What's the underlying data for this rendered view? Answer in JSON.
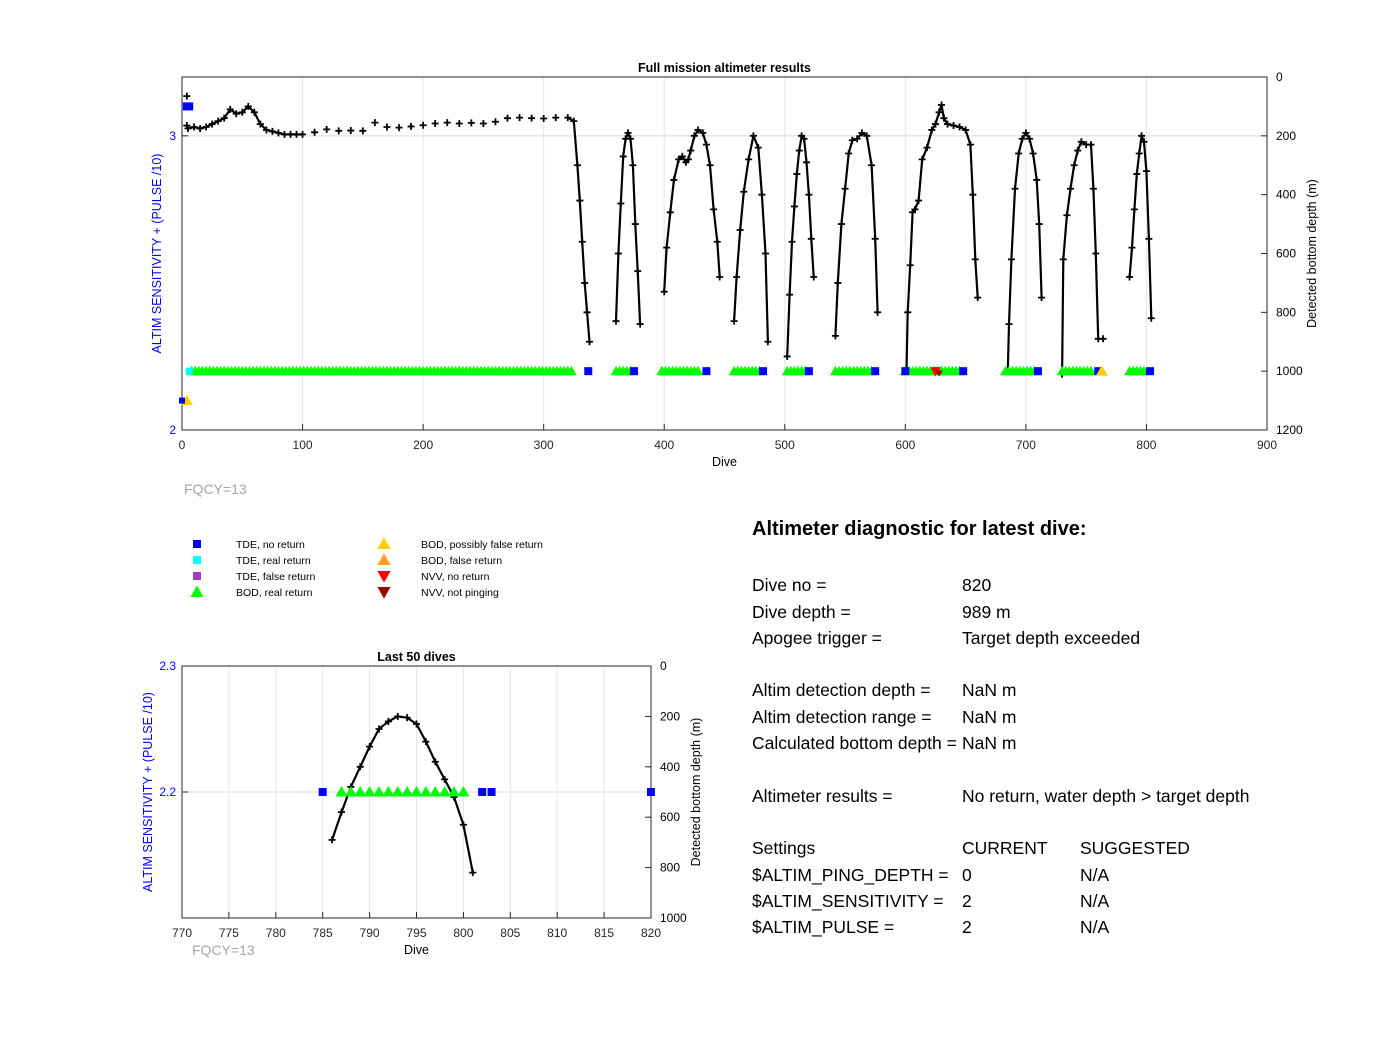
{
  "main_chart": {
    "title": "Full mission altimeter results",
    "xlabel": "Dive",
    "ylabel_left": "ALTIM SENSITIVITY + (PULSE /10)",
    "ylabel_right": "Detected bottom depth (m)",
    "xticks": [
      "0",
      "100",
      "200",
      "300",
      "400",
      "500",
      "600",
      "700",
      "800",
      "900"
    ],
    "yticks_left": [
      "2",
      "3"
    ],
    "yticks_right": [
      "0",
      "200",
      "400",
      "600",
      "800",
      "1000",
      "1200"
    ],
    "note": "FQCY=13"
  },
  "small_chart": {
    "title": "Last 50 dives",
    "xlabel": "Dive",
    "ylabel_left": "ALTIM SENSITIVITY + (PULSE /10)",
    "ylabel_right": "Detected bottom depth (m)",
    "xticks": [
      "770",
      "775",
      "780",
      "785",
      "790",
      "795",
      "800",
      "805",
      "810",
      "815",
      "820"
    ],
    "yticks_left": [
      "2.2",
      "2.3"
    ],
    "yticks_right": [
      "0",
      "200",
      "400",
      "600",
      "800",
      "1000"
    ],
    "note": "FQCY=13"
  },
  "legend": [
    {
      "label": "TDE, no return",
      "marker": "square",
      "color": "#0000ff"
    },
    {
      "label": "TDE, real return",
      "marker": "square",
      "color": "#00ffff"
    },
    {
      "label": "TDE, false return",
      "marker": "square",
      "color": "#a040c0"
    },
    {
      "label": "BOD, real return",
      "marker": "triangle-up",
      "color": "#00ff00"
    },
    {
      "label": "BOD, possibly false return",
      "marker": "triangle-up",
      "color": "#ffd000"
    },
    {
      "label": "BOD, false return",
      "marker": "triangle-up",
      "color": "#ffa020"
    },
    {
      "label": "NVV, no return",
      "marker": "triangle-down",
      "color": "#ff0000"
    },
    {
      "label": "NVV, not pinging",
      "marker": "triangle-down",
      "color": "#a00000"
    }
  ],
  "diagnostic": {
    "title": "Altimeter diagnostic for latest dive:",
    "dive_no_label": "Dive no =",
    "dive_no": "820",
    "dive_depth_label": "Dive depth =",
    "dive_depth": "989 m",
    "apogee_label": "Apogee trigger =",
    "apogee": "Target depth exceeded",
    "det_depth_label": "Altim detection depth =",
    "det_depth": "NaN m",
    "det_range_label": "Altim detection range =",
    "det_range": "NaN m",
    "bottom_label": "Calculated bottom depth =",
    "bottom": "NaN m",
    "results_label": "Altimeter results =",
    "results": "No return, water depth > target depth",
    "settings_label": "Settings",
    "current_label": "CURRENT",
    "suggested_label": "SUGGESTED",
    "ping_depth_label": "$ALTIM_PING_DEPTH =",
    "ping_depth_current": "0",
    "ping_depth_suggested": "N/A",
    "sensitivity_label": "$ALTIM_SENSITIVITY =",
    "sensitivity_current": "2",
    "sensitivity_suggested": "N/A",
    "pulse_label": "$ALTIM_PULSE =",
    "pulse_current": "2",
    "pulse_suggested": "N/A"
  },
  "chart_data": [
    {
      "type": "scatter",
      "title": "Full mission altimeter results",
      "xlabel": "Dive",
      "ylabel": "ALTIM SENSITIVITY + (PULSE /10)",
      "ylabel_right": "Detected bottom depth (m)",
      "xlim": [
        0,
        900
      ],
      "ylim": [
        2,
        3.2
      ],
      "ylim_right": [
        1200,
        0
      ],
      "grid": true,
      "depth_series": [
        [
          4,
          165
        ],
        [
          5,
          175
        ],
        [
          10,
          170
        ],
        [
          15,
          175
        ],
        [
          20,
          170
        ],
        [
          25,
          160
        ],
        [
          30,
          150
        ],
        [
          35,
          140
        ],
        [
          40,
          110
        ],
        [
          45,
          125
        ],
        [
          50,
          120
        ],
        [
          55,
          100
        ],
        [
          60,
          120
        ],
        [
          65,
          160
        ],
        [
          70,
          180
        ],
        [
          75,
          185
        ],
        [
          80,
          190
        ],
        [
          85,
          195
        ],
        [
          90,
          195
        ],
        [
          95,
          195
        ],
        [
          100,
          195
        ],
        [
          110,
          188
        ],
        [
          120,
          178
        ],
        [
          130,
          183
        ],
        [
          140,
          182
        ],
        [
          150,
          183
        ],
        [
          160,
          155
        ],
        [
          170,
          170
        ],
        [
          180,
          172
        ],
        [
          190,
          168
        ],
        [
          200,
          164
        ],
        [
          210,
          158
        ],
        [
          220,
          155
        ],
        [
          230,
          158
        ],
        [
          240,
          156
        ],
        [
          250,
          158
        ],
        [
          260,
          152
        ],
        [
          270,
          140
        ],
        [
          280,
          138
        ],
        [
          290,
          140
        ],
        [
          300,
          141
        ],
        [
          310,
          138
        ],
        [
          320,
          138
        ],
        [
          325,
          150
        ],
        [
          328,
          300
        ],
        [
          330,
          420
        ],
        [
          332,
          560
        ],
        [
          334,
          700
        ],
        [
          336,
          800
        ],
        [
          338,
          900
        ],
        [
          360,
          830
        ],
        [
          362,
          600
        ],
        [
          364,
          430
        ],
        [
          366,
          270
        ],
        [
          368,
          210
        ],
        [
          370,
          190
        ],
        [
          372,
          210
        ],
        [
          374,
          300
        ],
        [
          376,
          500
        ],
        [
          378,
          660
        ],
        [
          380,
          840
        ],
        [
          400,
          730
        ],
        [
          402,
          580
        ],
        [
          405,
          460
        ],
        [
          408,
          350
        ],
        [
          412,
          280
        ],
        [
          415,
          270
        ],
        [
          418,
          290
        ],
        [
          420,
          280
        ],
        [
          422,
          250
        ],
        [
          425,
          200
        ],
        [
          428,
          180
        ],
        [
          432,
          190
        ],
        [
          435,
          230
        ],
        [
          438,
          300
        ],
        [
          441,
          450
        ],
        [
          444,
          560
        ],
        [
          446,
          680
        ],
        [
          458,
          830
        ],
        [
          460,
          680
        ],
        [
          463,
          520
        ],
        [
          466,
          390
        ],
        [
          470,
          280
        ],
        [
          474,
          200
        ],
        [
          478,
          240
        ],
        [
          481,
          400
        ],
        [
          484,
          600
        ],
        [
          486,
          900
        ],
        [
          502,
          950
        ],
        [
          504,
          740
        ],
        [
          506,
          560
        ],
        [
          508,
          440
        ],
        [
          510,
          330
        ],
        [
          512,
          250
        ],
        [
          514,
          200
        ],
        [
          516,
          210
        ],
        [
          518,
          290
        ],
        [
          520,
          400
        ],
        [
          522,
          550
        ],
        [
          524,
          680
        ],
        [
          542,
          880
        ],
        [
          544,
          700
        ],
        [
          547,
          500
        ],
        [
          550,
          380
        ],
        [
          553,
          260
        ],
        [
          556,
          215
        ],
        [
          560,
          210
        ],
        [
          564,
          190
        ],
        [
          568,
          200
        ],
        [
          572,
          300
        ],
        [
          575,
          550
        ],
        [
          577,
          800
        ],
        [
          601,
          1000
        ],
        [
          602,
          800
        ],
        [
          604,
          640
        ],
        [
          606,
          460
        ],
        [
          608,
          450
        ],
        [
          611,
          420
        ],
        [
          614,
          280
        ],
        [
          618,
          240
        ],
        [
          622,
          180
        ],
        [
          625,
          160
        ],
        [
          628,
          120
        ],
        [
          630,
          95
        ],
        [
          632,
          140
        ],
        [
          635,
          160
        ],
        [
          640,
          165
        ],
        [
          645,
          170
        ],
        [
          650,
          180
        ],
        [
          654,
          230
        ],
        [
          656,
          400
        ],
        [
          658,
          620
        ],
        [
          660,
          750
        ],
        [
          685,
          1000
        ],
        [
          686,
          840
        ],
        [
          688,
          620
        ],
        [
          691,
          380
        ],
        [
          694,
          260
        ],
        [
          697,
          210
        ],
        [
          700,
          190
        ],
        [
          703,
          210
        ],
        [
          706,
          260
        ],
        [
          709,
          350
        ],
        [
          711,
          500
        ],
        [
          713,
          750
        ],
        [
          730,
          1010
        ],
        [
          731,
          620
        ],
        [
          734,
          470
        ],
        [
          737,
          380
        ],
        [
          740,
          300
        ],
        [
          743,
          250
        ],
        [
          746,
          220
        ],
        [
          750,
          230
        ],
        [
          754,
          230
        ],
        [
          756,
          380
        ],
        [
          758,
          600
        ],
        [
          760,
          890
        ],
        [
          786,
          680
        ],
        [
          788,
          580
        ],
        [
          790,
          450
        ],
        [
          792,
          330
        ],
        [
          794,
          260
        ],
        [
          796,
          200
        ],
        [
          798,
          220
        ],
        [
          800,
          320
        ],
        [
          802,
          550
        ],
        [
          804,
          820
        ]
      ],
      "bod_real_return_segments": [
        [
          8,
          325
        ],
        [
          360,
          372
        ],
        [
          398,
          430
        ],
        [
          458,
          480
        ],
        [
          502,
          518
        ],
        [
          542,
          572
        ],
        [
          600,
          645
        ],
        [
          683,
          708
        ],
        [
          730,
          755
        ],
        [
          786,
          800
        ]
      ],
      "tde_no_return": [
        [
          4,
          3.1
        ],
        [
          337,
          2.2
        ],
        [
          375,
          2.2
        ],
        [
          435,
          2.2
        ],
        [
          482,
          2.2
        ],
        [
          520,
          2.2
        ],
        [
          575,
          2.2
        ],
        [
          648,
          2.2
        ],
        [
          710,
          2.2
        ],
        [
          760,
          2.2
        ],
        [
          803,
          2.2
        ],
        [
          600,
          2.2
        ]
      ],
      "tde_real_return": [
        [
          6,
          2.2
        ]
      ],
      "bod_possibly_false": [
        [
          4,
          2.1
        ],
        [
          763,
          2.2
        ]
      ],
      "nvv_no_return": [
        [
          625,
          2.2
        ]
      ],
      "nvv_not_pinging": [
        [
          628,
          2.2
        ]
      ]
    },
    {
      "type": "scatter",
      "title": "Last 50 dives",
      "xlabel": "Dive",
      "ylabel": "ALTIM SENSITIVITY + (PULSE /10)",
      "ylabel_right": "Detected bottom depth (m)",
      "xlim": [
        770,
        820
      ],
      "ylim": [
        2.1,
        2.3
      ],
      "ylim_right": [
        1000,
        0
      ],
      "grid": true,
      "depth_series": [
        [
          786,
          690
        ],
        [
          787,
          580
        ],
        [
          788,
          480
        ],
        [
          789,
          400
        ],
        [
          790,
          320
        ],
        [
          791,
          250
        ],
        [
          792,
          220
        ],
        [
          793,
          200
        ],
        [
          794,
          205
        ],
        [
          795,
          230
        ],
        [
          796,
          300
        ],
        [
          797,
          380
        ],
        [
          798,
          450
        ],
        [
          799,
          520
        ],
        [
          800,
          630
        ],
        [
          801,
          820
        ]
      ],
      "bod_real_return": [
        787,
        788,
        789,
        790,
        791,
        792,
        793,
        794,
        795,
        796,
        797,
        798,
        799,
        800
      ],
      "tde_no_return": [
        785,
        802,
        803,
        820
      ],
      "marker_level": 2.2
    }
  ]
}
